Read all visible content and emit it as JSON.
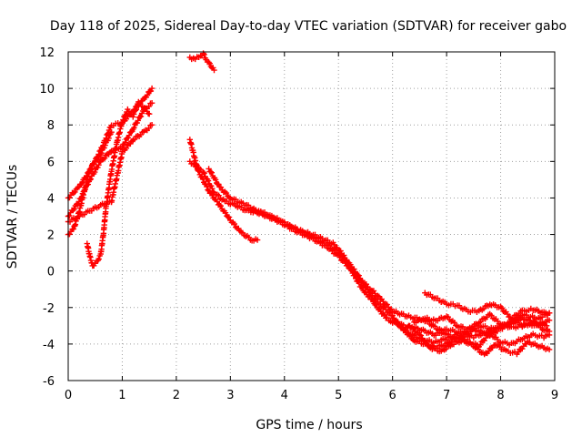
{
  "chart_data": {
    "type": "scatter",
    "title": "Day 118 of 2025, Sidereal Day-to-day VTEC variation (SDTVAR) for receiver gabo",
    "xlabel": "GPS time / hours",
    "ylabel": "SDTVAR / TECUs",
    "xlim": [
      0,
      9
    ],
    "ylim": [
      -6,
      12
    ],
    "xticks": [
      0,
      1,
      2,
      3,
      4,
      5,
      6,
      7,
      8,
      9
    ],
    "yticks": [
      -6,
      -4,
      -2,
      0,
      2,
      4,
      6,
      8,
      10,
      12
    ],
    "grid": true,
    "marker": "+",
    "color": "#ff0000",
    "series": [
      {
        "name": "s1",
        "x": [
          0,
          0.2,
          0.4,
          0.6,
          0.8,
          1.0,
          1.2,
          1.4,
          1.55
        ],
        "y": [
          4.0,
          4.6,
          5.5,
          6.6,
          8.0,
          8.1,
          8.8,
          9.4,
          10.0
        ]
      },
      {
        "name": "s2",
        "x": [
          0,
          0.2,
          0.4,
          0.6,
          0.8,
          1.0,
          1.2,
          1.4,
          1.55
        ],
        "y": [
          3.0,
          3.8,
          5.0,
          6.0,
          6.6,
          6.8,
          7.8,
          8.8,
          9.2
        ]
      },
      {
        "name": "s3",
        "x": [
          0,
          0.2,
          0.4,
          0.6,
          0.8,
          1.0,
          1.2,
          1.4,
          1.55
        ],
        "y": [
          2.7,
          3.0,
          3.3,
          3.6,
          3.8,
          6.5,
          7.2,
          7.6,
          8.0
        ]
      },
      {
        "name": "s4",
        "x": [
          0,
          0.1,
          0.2,
          0.3,
          0.4,
          0.5,
          0.6,
          0.7,
          0.8
        ],
        "y": [
          2.0,
          2.3,
          3.2,
          4.4,
          5.6,
          6.0,
          6.4,
          7.0,
          7.6
        ]
      },
      {
        "name": "s5",
        "x": [
          0.35,
          0.4,
          0.45,
          0.5,
          0.55,
          0.6,
          0.65,
          0.7,
          0.8,
          0.9,
          1.0,
          1.1,
          1.2,
          1.3,
          1.4,
          1.5
        ],
        "y": [
          1.5,
          0.8,
          0.3,
          0.4,
          0.6,
          0.9,
          2.0,
          3.5,
          5.5,
          7.0,
          8.2,
          8.8,
          8.5,
          9.2,
          9.0,
          8.6
        ]
      },
      {
        "name": "s6",
        "x": [
          2.25,
          2.35,
          2.45,
          2.5,
          2.55,
          2.6,
          2.7
        ],
        "y": [
          11.7,
          11.6,
          11.8,
          11.9,
          11.6,
          11.4,
          11.0
        ]
      },
      {
        "name": "s7",
        "x": [
          2.25,
          2.4,
          2.6,
          2.8,
          3.0,
          3.2,
          3.4,
          3.5
        ],
        "y": [
          7.2,
          5.5,
          4.4,
          3.6,
          2.8,
          2.1,
          1.7,
          1.7
        ]
      },
      {
        "name": "s8",
        "x": [
          2.25,
          2.5,
          2.7,
          2.9,
          3.1,
          3.3,
          3.5,
          3.8,
          4.0,
          4.3,
          4.6,
          4.9,
          5.0,
          5.1,
          5.2,
          5.3,
          5.4,
          5.5,
          5.6,
          5.7,
          5.8,
          5.9,
          6.0,
          6.2,
          6.4,
          6.6,
          6.8,
          7.0,
          7.3,
          7.6,
          7.9,
          8.2,
          8.5,
          8.7,
          8.85
        ],
        "y": [
          6.0,
          5.4,
          4.3,
          3.8,
          3.6,
          3.3,
          3.2,
          2.9,
          2.6,
          2.2,
          1.9,
          1.5,
          1.2,
          0.8,
          0.2,
          -0.3,
          -0.8,
          -1.2,
          -1.5,
          -1.9,
          -2.3,
          -2.6,
          -2.8,
          -3.0,
          -3.1,
          -3.3,
          -3.5,
          -3.2,
          -3.4,
          -3.0,
          -3.2,
          -2.8,
          -3.0,
          -2.9,
          -3.0
        ]
      },
      {
        "name": "s9",
        "x": [
          2.6,
          2.8,
          3.0,
          3.3,
          3.6,
          3.9,
          4.2,
          4.5,
          4.8,
          5.0,
          5.2,
          5.4,
          5.6,
          5.8,
          6.0,
          6.3,
          6.6,
          6.9,
          7.2,
          7.5,
          7.8,
          8.1,
          8.4,
          8.7,
          8.9
        ],
        "y": [
          5.6,
          4.6,
          4.0,
          3.6,
          3.1,
          2.7,
          2.2,
          1.8,
          1.3,
          0.8,
          0.2,
          -0.5,
          -1.0,
          -1.6,
          -2.2,
          -2.5,
          -2.7,
          -3.3,
          -3.8,
          -3.2,
          -3.5,
          -3.0,
          -2.4,
          -2.6,
          -2.3
        ]
      },
      {
        "name": "s10",
        "x": [
          3.3,
          3.6,
          3.9,
          4.2,
          4.5,
          4.8,
          5.0,
          5.2,
          5.4,
          5.6,
          5.8,
          6.0,
          6.2,
          6.4,
          6.6,
          6.8,
          7.0,
          7.2,
          7.5,
          7.8,
          8.1,
          8.4,
          8.7,
          8.9
        ],
        "y": [
          3.4,
          3.2,
          2.8,
          2.3,
          1.9,
          1.4,
          1.0,
          0.4,
          -0.4,
          -1.3,
          -1.9,
          -2.5,
          -3.2,
          -3.6,
          -3.8,
          -3.9,
          -3.7,
          -3.5,
          -3.6,
          -3.3,
          -2.9,
          -2.6,
          -2.9,
          -2.7
        ]
      },
      {
        "name": "s11",
        "x": [
          6.6,
          6.8,
          7.0,
          7.2,
          7.4,
          7.6,
          7.8,
          8.0,
          8.2,
          8.4,
          8.6,
          8.8,
          8.9
        ],
        "y": [
          -1.2,
          -1.5,
          -1.8,
          -1.9,
          -2.2,
          -2.2,
          -1.8,
          -2.0,
          -2.6,
          -2.2,
          -2.1,
          -2.3,
          -2.3
        ]
      },
      {
        "name": "s12",
        "x": [
          6.3,
          6.5,
          6.7,
          6.9,
          7.1,
          7.3,
          7.5,
          7.7,
          7.9,
          8.1,
          8.3,
          8.5,
          8.7,
          8.9
        ],
        "y": [
          -3.0,
          -3.5,
          -4.2,
          -4.4,
          -4.0,
          -3.8,
          -4.1,
          -4.6,
          -4.0,
          -4.4,
          -4.5,
          -3.9,
          -4.1,
          -4.3
        ]
      },
      {
        "name": "s13",
        "x": [
          6.0,
          6.2,
          6.4,
          6.6,
          6.8,
          7.0,
          7.2,
          7.4,
          7.6,
          7.8,
          8.0,
          8.2,
          8.4,
          8.6,
          8.8,
          8.9
        ],
        "y": [
          -2.6,
          -3.2,
          -3.8,
          -4.0,
          -4.2,
          -4.0,
          -3.6,
          -3.9,
          -4.1,
          -3.4,
          -3.9,
          -4.0,
          -3.7,
          -3.5,
          -3.6,
          -3.5
        ]
      },
      {
        "name": "s14",
        "x": [
          6.4,
          6.6,
          6.8,
          7.0,
          7.2,
          7.4,
          7.6,
          7.8,
          8.0,
          8.2,
          8.4,
          8.6,
          8.8,
          8.9
        ],
        "y": [
          -2.8,
          -2.6,
          -2.7,
          -2.5,
          -3.0,
          -3.2,
          -2.8,
          -2.4,
          -2.9,
          -3.1,
          -3.0,
          -2.8,
          -3.2,
          -3.3
        ]
      }
    ]
  }
}
